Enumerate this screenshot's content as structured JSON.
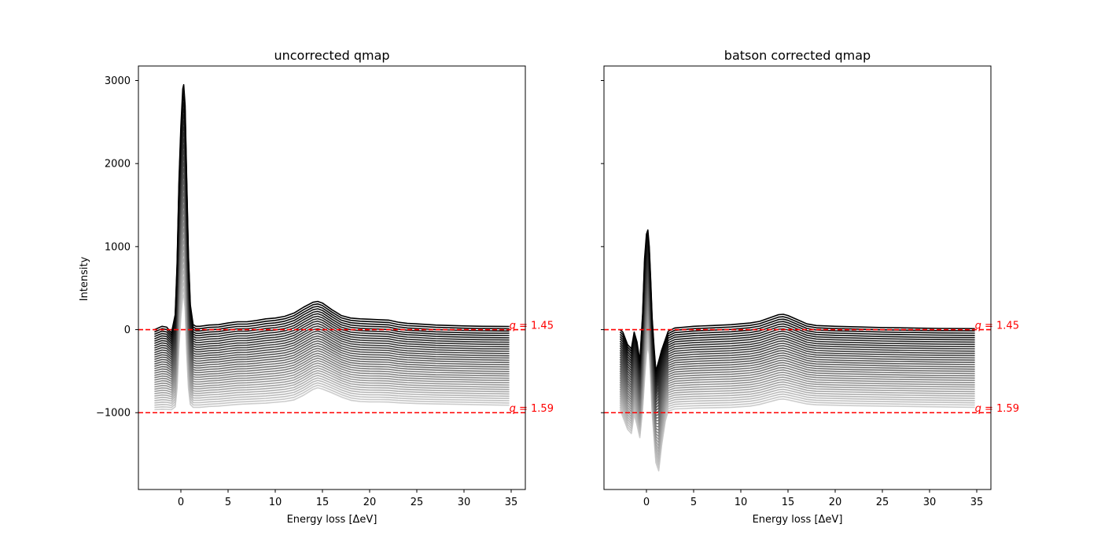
{
  "colors": {
    "curve_light": "#cccccc",
    "curve_dark": "#000000",
    "reference": "#ff0000",
    "axes": "#000000"
  },
  "chart_data": [
    {
      "type": "line",
      "panel": "left",
      "title": "uncorrected qmap",
      "xlabel": "Energy loss [ΔeV]",
      "ylabel": "Intensity",
      "xlim": [
        -4.5,
        36.5
      ],
      "ylim": [
        -1925,
        3175
      ],
      "xticks": [
        0,
        5,
        10,
        15,
        20,
        25,
        30,
        35
      ],
      "yticks": [
        -1000,
        0,
        1000,
        2000,
        3000
      ],
      "ytick_labels": [
        "−1000",
        "0",
        "1000",
        "2000",
        "3000"
      ],
      "grid": false,
      "curve_count": 36,
      "curve_energy_range": [
        -2.8,
        34.8
      ],
      "curve_offset_first": 0,
      "curve_offset_last": -950,
      "profile_top": {
        "x": [
          -2.8,
          -2.0,
          -1.5,
          -1.0,
          -0.6,
          -0.4,
          -0.2,
          0.0,
          0.2,
          0.3,
          0.45,
          0.6,
          0.8,
          1.0,
          1.3,
          1.6,
          2.0,
          3.0,
          4.0,
          5.0,
          6.0,
          7.0,
          8.0,
          9.0,
          10.0,
          11.0,
          12.0,
          13.0,
          14.0,
          14.5,
          15.0,
          16.0,
          17.0,
          18.0,
          19.0,
          20.0,
          21.0,
          22.0,
          23.0,
          24.0,
          25.0,
          27.0,
          30.0,
          32.0,
          34.8
        ],
        "y": [
          0,
          40,
          30,
          -40,
          180,
          800,
          1800,
          2450,
          2900,
          2950,
          2700,
          1900,
          900,
          300,
          60,
          40,
          40,
          55,
          60,
          80,
          95,
          95,
          110,
          130,
          140,
          160,
          200,
          270,
          330,
          340,
          320,
          240,
          170,
          140,
          130,
          125,
          120,
          115,
          90,
          75,
          70,
          55,
          45,
          40,
          38
        ]
      },
      "profile_bottom": {
        "x": [
          -2.8,
          -2.0,
          -1.5,
          -1.0,
          -0.6,
          -0.4,
          -0.2,
          0.0,
          0.2,
          0.3,
          0.45,
          0.6,
          0.8,
          1.0,
          1.3,
          1.6,
          2.0,
          3.0,
          4.0,
          5.0,
          6.0,
          7.0,
          8.0,
          9.0,
          10.0,
          11.0,
          12.0,
          13.0,
          14.0,
          14.5,
          15.0,
          16.0,
          17.0,
          18.0,
          19.0,
          20.0,
          21.0,
          22.0,
          23.0,
          24.0,
          25.0,
          27.0,
          30.0,
          32.0,
          34.8
        ],
        "y": [
          -965,
          -958,
          -960,
          -965,
          -930,
          -700,
          -200,
          150,
          400,
          420,
          250,
          -250,
          -700,
          -900,
          -935,
          -935,
          -935,
          -925,
          -920,
          -910,
          -900,
          -895,
          -890,
          -885,
          -875,
          -865,
          -845,
          -790,
          -720,
          -700,
          -715,
          -760,
          -810,
          -850,
          -865,
          -870,
          -870,
          -872,
          -880,
          -885,
          -890,
          -895,
          -900,
          -905,
          -910
        ]
      },
      "reference_lines": [
        {
          "y": 0,
          "label": "q = 1.45",
          "label_q": "q",
          "label_value": " = 1.45"
        },
        {
          "y": -1000,
          "label": "q = 1.59",
          "label_q": "q",
          "label_value": " = 1.59"
        }
      ]
    },
    {
      "type": "line",
      "panel": "right",
      "title": "batson corrected qmap",
      "xlabel": "Energy loss [ΔeV]",
      "ylabel": "",
      "xlim": [
        -4.5,
        36.5
      ],
      "ylim": [
        -1925,
        3175
      ],
      "xticks": [
        0,
        5,
        10,
        15,
        20,
        25,
        30,
        35
      ],
      "yticks": [
        -1000,
        0,
        1000,
        2000,
        3000
      ],
      "ytick_labels": [],
      "grid": false,
      "curve_count": 36,
      "curve_energy_range": [
        -2.8,
        34.8
      ],
      "curve_offset_first": 0,
      "curve_offset_last": -950,
      "profile_top": {
        "x": [
          -2.8,
          -2.5,
          -2.0,
          -1.6,
          -1.3,
          -1.0,
          -0.7,
          -0.4,
          -0.2,
          0.0,
          0.15,
          0.3,
          0.45,
          0.6,
          0.8,
          1.0,
          1.3,
          1.6,
          2.0,
          2.3,
          3.0,
          4.0,
          5.0,
          7.0,
          9.0,
          11.0,
          12.0,
          13.0,
          14.0,
          14.5,
          15.0,
          16.0,
          17.0,
          18.0,
          20.0,
          22.0,
          25.0,
          28.0,
          31.0,
          34.8
        ],
        "y": [
          0,
          -30,
          -180,
          -230,
          -30,
          -150,
          -380,
          200,
          850,
          1150,
          1200,
          1000,
          600,
          150,
          -200,
          -500,
          -380,
          -250,
          -120,
          -20,
          20,
          30,
          40,
          50,
          60,
          80,
          100,
          140,
          180,
          185,
          170,
          120,
          70,
          50,
          40,
          35,
          25,
          20,
          15,
          12
        ]
      },
      "profile_bottom": {
        "x": [
          -2.8,
          -2.5,
          -2.0,
          -1.6,
          -1.3,
          -1.0,
          -0.7,
          -0.4,
          -0.2,
          0.0,
          0.15,
          0.3,
          0.45,
          0.6,
          0.8,
          1.0,
          1.3,
          1.6,
          2.0,
          2.3,
          3.0,
          4.0,
          5.0,
          7.0,
          9.0,
          11.0,
          12.0,
          13.0,
          14.0,
          14.5,
          15.0,
          16.0,
          17.0,
          18.0,
          20.0,
          22.0,
          25.0,
          28.0,
          31.0,
          34.8
        ],
        "y": [
          -960,
          -1050,
          -1200,
          -1250,
          -1020,
          -1150,
          -1300,
          -950,
          -600,
          -300,
          -200,
          -300,
          -600,
          -1000,
          -1300,
          -1600,
          -1700,
          -1400,
          -1100,
          -980,
          -955,
          -950,
          -945,
          -940,
          -935,
          -920,
          -900,
          -870,
          -840,
          -835,
          -845,
          -870,
          -895,
          -905,
          -910,
          -915,
          -920,
          -925,
          -930,
          -935
        ]
      },
      "reference_lines": [
        {
          "y": 0,
          "label": "q = 1.45",
          "label_q": "q",
          "label_value": " = 1.45"
        },
        {
          "y": -1000,
          "label": "q = 1.59",
          "label_q": "q",
          "label_value": " = 1.59"
        }
      ]
    }
  ]
}
